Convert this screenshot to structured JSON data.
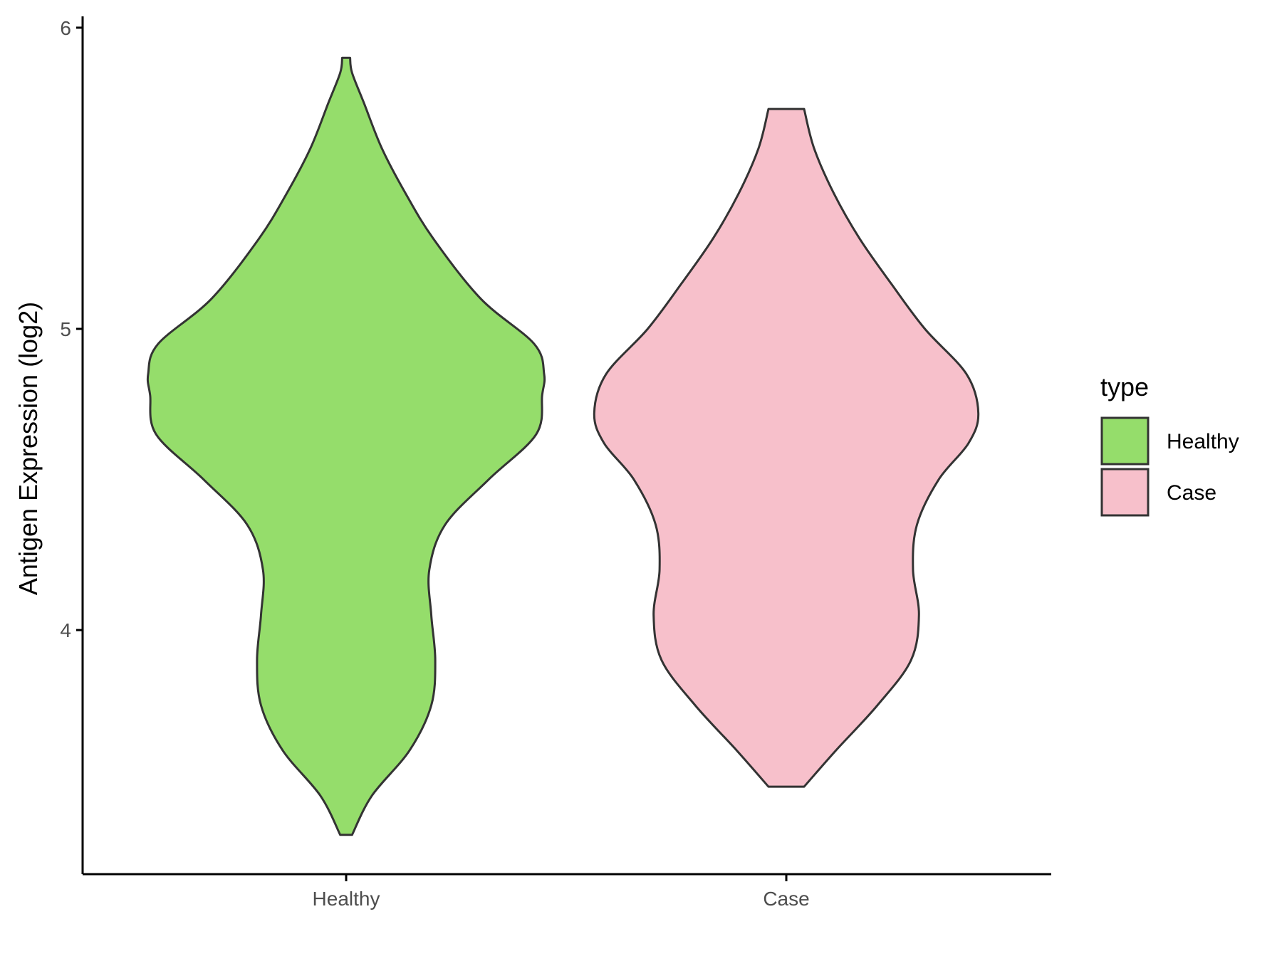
{
  "chart_data": {
    "type": "violin",
    "title": "",
    "xlabel": "",
    "ylabel": "Antigen Expression (log2)",
    "categories": [
      "Healthy",
      "Case"
    ],
    "y_ticks": [
      4,
      5,
      6
    ],
    "ylim": [
      3.2,
      6.05
    ],
    "legend": {
      "title": "type",
      "position": "right",
      "entries": [
        {
          "name": "Healthy",
          "color": "#95DD6B"
        },
        {
          "name": "Case",
          "color": "#F7C0CB"
        }
      ]
    },
    "series": [
      {
        "category": "Healthy",
        "color": "#95DD6B",
        "min": 3.32,
        "max": 5.9,
        "density_profile": [
          [
            3.32,
            0.03
          ],
          [
            3.45,
            0.13
          ],
          [
            3.6,
            0.32
          ],
          [
            3.75,
            0.43
          ],
          [
            3.9,
            0.45
          ],
          [
            4.05,
            0.43
          ],
          [
            4.2,
            0.42
          ],
          [
            4.35,
            0.5
          ],
          [
            4.5,
            0.72
          ],
          [
            4.65,
            0.96
          ],
          [
            4.78,
            0.99
          ],
          [
            4.85,
            1.0
          ],
          [
            4.95,
            0.95
          ],
          [
            5.1,
            0.68
          ],
          [
            5.3,
            0.44
          ],
          [
            5.45,
            0.3
          ],
          [
            5.6,
            0.18
          ],
          [
            5.75,
            0.09
          ],
          [
            5.85,
            0.03
          ],
          [
            5.9,
            0.02
          ]
        ]
      },
      {
        "category": "Case",
        "color": "#F7C0CB",
        "min": 3.48,
        "max": 5.73,
        "density_profile": [
          [
            3.48,
            0.09
          ],
          [
            3.6,
            0.25
          ],
          [
            3.75,
            0.46
          ],
          [
            3.9,
            0.63
          ],
          [
            4.05,
            0.67
          ],
          [
            4.2,
            0.64
          ],
          [
            4.35,
            0.66
          ],
          [
            4.5,
            0.77
          ],
          [
            4.62,
            0.92
          ],
          [
            4.72,
            0.97
          ],
          [
            4.85,
            0.91
          ],
          [
            5.0,
            0.7
          ],
          [
            5.15,
            0.53
          ],
          [
            5.3,
            0.37
          ],
          [
            5.45,
            0.24
          ],
          [
            5.6,
            0.14
          ],
          [
            5.73,
            0.09
          ]
        ]
      }
    ]
  }
}
